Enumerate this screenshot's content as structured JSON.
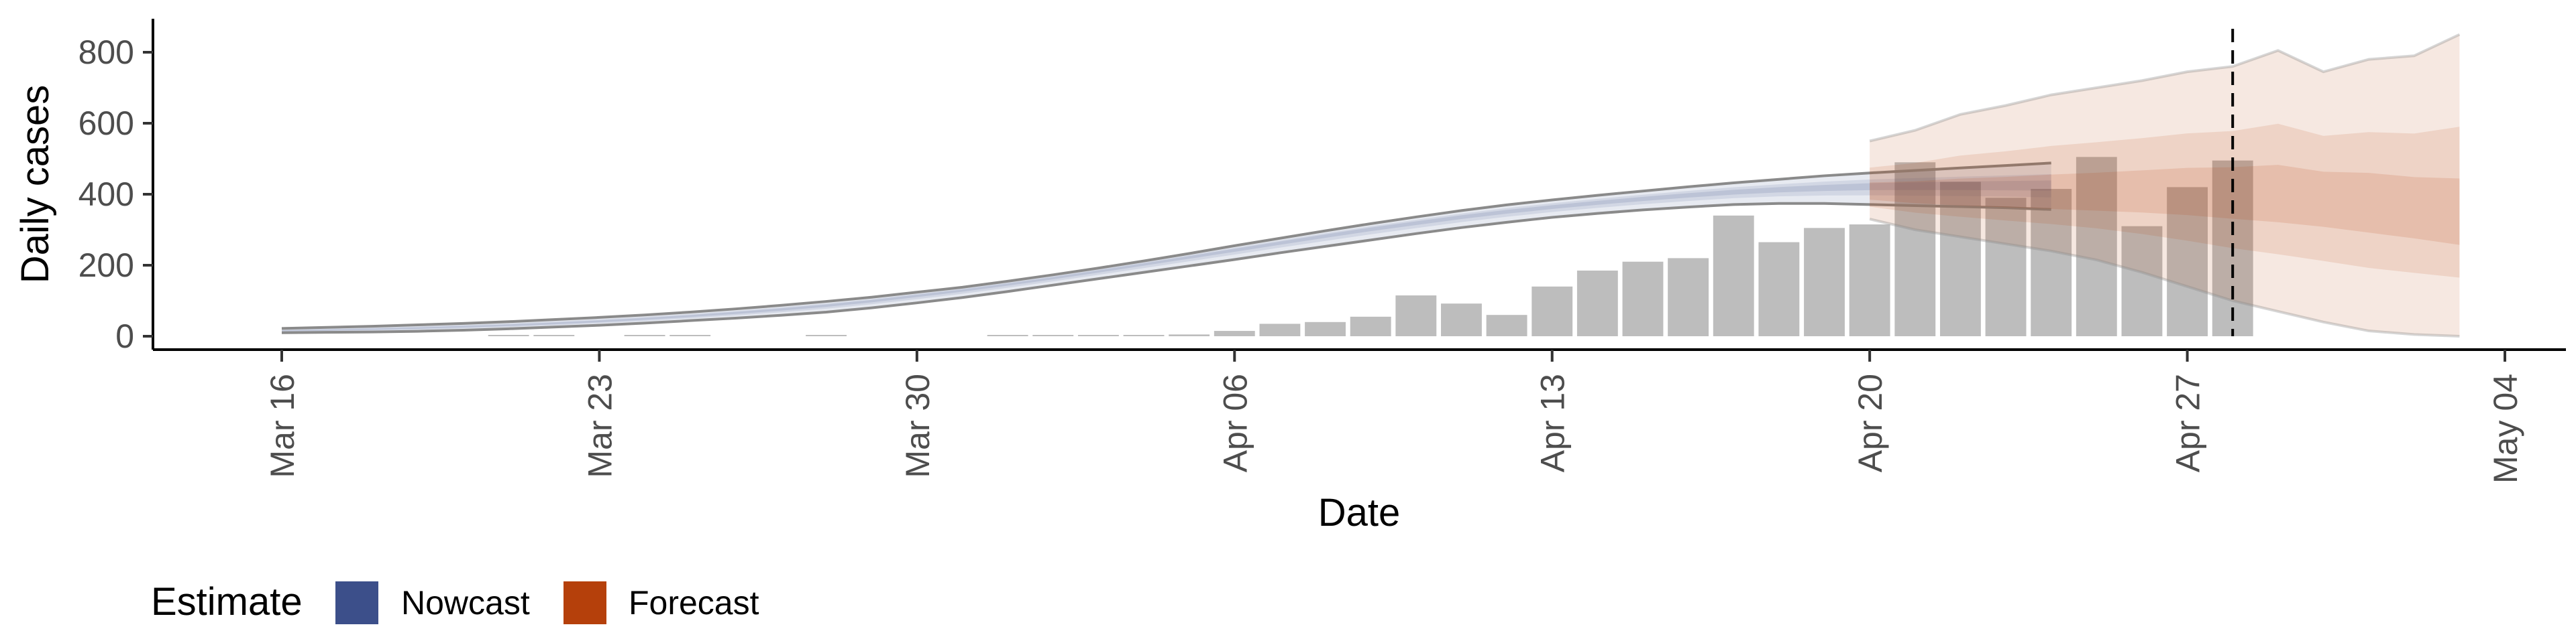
{
  "chart_data": {
    "type": "bar",
    "title": "",
    "xlabel": "Date",
    "ylabel": "Daily cases",
    "ylim": [
      0,
      850
    ],
    "yticks": [
      0,
      200,
      400,
      600,
      800
    ],
    "x_range": [
      "2020-03-13",
      "2020-05-06"
    ],
    "xticks": [
      {
        "date": "2020-03-16",
        "label": "Mar 16"
      },
      {
        "date": "2020-03-23",
        "label": "Mar 23"
      },
      {
        "date": "2020-03-30",
        "label": "Mar 30"
      },
      {
        "date": "2020-04-06",
        "label": "Apr 06"
      },
      {
        "date": "2020-04-13",
        "label": "Apr 13"
      },
      {
        "date": "2020-04-20",
        "label": "Apr 20"
      },
      {
        "date": "2020-04-27",
        "label": "Apr 27"
      },
      {
        "date": "2020-05-04",
        "label": "May 04"
      }
    ],
    "grid": false,
    "legend_position": "bottom-left",
    "vline_date": "2020-04-28",
    "bars": {
      "color": "#bdbdbd",
      "dates": [
        "2020-03-21",
        "2020-03-22",
        "2020-03-23",
        "2020-03-24",
        "2020-03-25",
        "2020-03-26",
        "2020-03-27",
        "2020-03-28",
        "2020-03-29",
        "2020-03-30",
        "2020-03-31",
        "2020-04-01",
        "2020-04-02",
        "2020-04-03",
        "2020-04-04",
        "2020-04-05",
        "2020-04-06",
        "2020-04-07",
        "2020-04-08",
        "2020-04-09",
        "2020-04-10",
        "2020-04-11",
        "2020-04-12",
        "2020-04-13",
        "2020-04-14",
        "2020-04-15",
        "2020-04-16",
        "2020-04-17",
        "2020-04-18",
        "2020-04-19",
        "2020-04-20",
        "2020-04-21",
        "2020-04-22",
        "2020-04-23",
        "2020-04-24",
        "2020-04-25",
        "2020-04-26",
        "2020-04-27",
        "2020-04-28"
      ],
      "values": [
        3,
        3,
        0,
        2,
        2,
        0,
        0,
        3,
        0,
        0,
        0,
        2,
        2,
        2,
        3,
        5,
        15,
        35,
        40,
        55,
        115,
        92,
        60,
        140,
        185,
        210,
        220,
        340,
        265,
        305,
        315,
        490,
        435,
        390,
        415,
        505,
        310,
        420,
        495
      ]
    },
    "series": [
      {
        "name": "Nowcast",
        "color": "#3c4f8a",
        "start": "2020-03-16",
        "mean": [
          15,
          17,
          20,
          23,
          27,
          31,
          36,
          42,
          49,
          57,
          66,
          76,
          87,
          100,
          115,
          130,
          147,
          165,
          184,
          204,
          224,
          244,
          264,
          284,
          303,
          320,
          337,
          352,
          365,
          377,
          388,
          398,
          407,
          414,
          419,
          423,
          424,
          425,
          425,
          425
        ],
        "lower": [
          10,
          11,
          12,
          14,
          17,
          21,
          26,
          31,
          37,
          44,
          51,
          59,
          68,
          80,
          94,
          109,
          126,
          144,
          162,
          180,
          198,
          216,
          235,
          253,
          271,
          289,
          306,
          321,
          335,
          346,
          356,
          364,
          371,
          374,
          374,
          371,
          368,
          365,
          362,
          357
        ],
        "upper": [
          22,
          25,
          28,
          32,
          36,
          41,
          47,
          53,
          60,
          68,
          77,
          87,
          98,
          110,
          124,
          138,
          155,
          173,
          192,
          212,
          233,
          255,
          276,
          297,
          317,
          336,
          354,
          370,
          384,
          397,
          409,
          421,
          432,
          442,
          452,
          460,
          467,
          474,
          481,
          488
        ]
      },
      {
        "name": "Forecast",
        "color": "#b5400b",
        "start": "2020-04-20",
        "mean": [
          400,
          396,
          393,
          392,
          392,
          393,
          396,
          398,
          396,
          392,
          384,
          370,
          352,
          330
        ],
        "lower": [
          330,
          300,
          280,
          260,
          240,
          215,
          180,
          140,
          100,
          70,
          40,
          15,
          5,
          0
        ],
        "upper": [
          550,
          580,
          625,
          650,
          680,
          700,
          720,
          745,
          760,
          805,
          745,
          780,
          790,
          850
        ]
      }
    ],
    "legend": {
      "title": "Estimate",
      "items": [
        {
          "label": "Nowcast",
          "color": "#3c4f8a"
        },
        {
          "label": "Forecast",
          "color": "#b5400b"
        }
      ]
    }
  }
}
